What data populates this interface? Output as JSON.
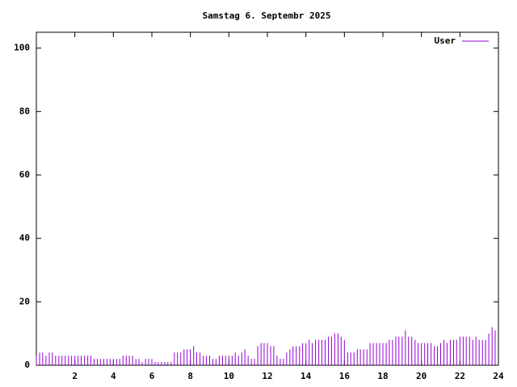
{
  "chart_data": {
    "type": "impulses",
    "title": "Samstag 6. Septembr 2025",
    "x": [
      0,
      0.17,
      0.33,
      0.5,
      0.67,
      0.83,
      1,
      1.17,
      1.33,
      1.5,
      1.67,
      1.83,
      2,
      2.17,
      2.33,
      2.5,
      2.67,
      2.83,
      3,
      3.17,
      3.33,
      3.5,
      3.67,
      3.83,
      4,
      4.17,
      4.33,
      4.5,
      4.67,
      4.83,
      5,
      5.17,
      5.33,
      5.5,
      5.67,
      5.83,
      6,
      6.17,
      6.33,
      6.5,
      6.67,
      6.83,
      7,
      7.17,
      7.33,
      7.5,
      7.67,
      7.83,
      8,
      8.17,
      8.33,
      8.5,
      8.67,
      8.83,
      9,
      9.17,
      9.33,
      9.5,
      9.67,
      9.83,
      10,
      10.17,
      10.33,
      10.5,
      10.67,
      10.83,
      11,
      11.17,
      11.33,
      11.5,
      11.67,
      11.83,
      12,
      12.17,
      12.33,
      12.5,
      12.67,
      12.83,
      13,
      13.17,
      13.33,
      13.5,
      13.67,
      13.83,
      14,
      14.17,
      14.33,
      14.5,
      14.67,
      14.83,
      15,
      15.17,
      15.33,
      15.5,
      15.67,
      15.83,
      16,
      16.17,
      16.33,
      16.5,
      16.67,
      16.83,
      17,
      17.17,
      17.33,
      17.5,
      17.67,
      17.83,
      18,
      18.17,
      18.33,
      18.5,
      18.67,
      18.83,
      19,
      19.17,
      19.33,
      19.5,
      19.67,
      19.83,
      20,
      20.17,
      20.33,
      20.5,
      20.67,
      20.83,
      21,
      21.17,
      21.33,
      21.5,
      21.67,
      21.83,
      22,
      22.17,
      22.33,
      22.5,
      22.67,
      22.83,
      23,
      23.17,
      23.33,
      23.5,
      23.67,
      23.83
    ],
    "series": [
      {
        "name": "User",
        "color": "#9400d3",
        "values": [
          3,
          4,
          4,
          3,
          4,
          4,
          3,
          3,
          3,
          3,
          3,
          3,
          3,
          3,
          3,
          3,
          3,
          3,
          2,
          2,
          2,
          2,
          2,
          2,
          2,
          2,
          2,
          3,
          3,
          3,
          3,
          2,
          2,
          1,
          2,
          2,
          2,
          1,
          1,
          1,
          1,
          1,
          1,
          4,
          4,
          4,
          5,
          5,
          5,
          6,
          4,
          4,
          3,
          3,
          3,
          2,
          2,
          3,
          3,
          3,
          3,
          3,
          4,
          3,
          4,
          5,
          3,
          2,
          2,
          6,
          7,
          7,
          7,
          6,
          6,
          3,
          2,
          2,
          4,
          5,
          6,
          6,
          6,
          7,
          7,
          8,
          7,
          8,
          8,
          8,
          8,
          9,
          9,
          10,
          10,
          9,
          8,
          4,
          4,
          4,
          5,
          5,
          5,
          5,
          7,
          7,
          7,
          7,
          7,
          7,
          8,
          8,
          9,
          9,
          9,
          11,
          9,
          9,
          8,
          7,
          7,
          7,
          7,
          7,
          6,
          6,
          7,
          8,
          7,
          8,
          8,
          8,
          9,
          9,
          9,
          9,
          8,
          9,
          8,
          8,
          8,
          10,
          12,
          11
        ]
      }
    ],
    "xlim": [
      0,
      24
    ],
    "xticks": [
      2,
      4,
      6,
      8,
      10,
      12,
      14,
      16,
      18,
      20,
      22,
      24
    ],
    "ylim": [
      0,
      105
    ],
    "yticks": [
      0,
      20,
      40,
      60,
      80,
      100
    ],
    "legend": "top-right"
  }
}
